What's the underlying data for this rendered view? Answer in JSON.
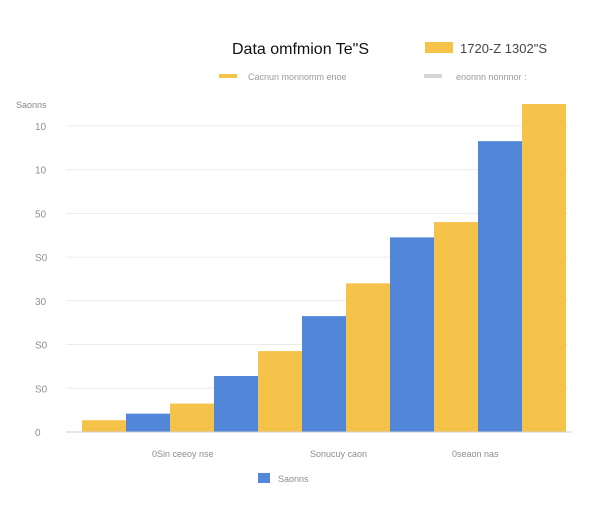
{
  "chart_data": {
    "type": "bar",
    "title": "Data omfmion Te\"S",
    "header_right_label": "1720-Z 1302\"S",
    "subtitle_left": "Cacnun monnomm enoe",
    "subtitle_right": "enonnn nonnnor :",
    "ylabel": "Saonns",
    "y_ticks": [
      "0",
      "S0",
      "S0",
      "30",
      "S0",
      "50",
      "10",
      "10"
    ],
    "y_tick_values": [
      0,
      10,
      20,
      30,
      40,
      50,
      60,
      70
    ],
    "ylim": [
      0,
      75
    ],
    "grid": true,
    "bar_groups": 6,
    "series": [
      {
        "name": "Saonns",
        "color": "#f5c24a",
        "values": [
          2.7,
          6.5,
          18.5,
          34,
          48,
          75
        ]
      },
      {
        "name": "Saonns",
        "color": "#5286d9",
        "values": [
          4.2,
          12.8,
          26.5,
          44.5,
          66.5,
          0
        ]
      }
    ],
    "bars_in_order": [
      {
        "series": 0,
        "value": 2.7
      },
      {
        "series": 1,
        "value": 4.2
      },
      {
        "series": 0,
        "value": 6.5
      },
      {
        "series": 1,
        "value": 12.8
      },
      {
        "series": 0,
        "value": 18.5
      },
      {
        "series": 1,
        "value": 26.5
      },
      {
        "series": 0,
        "value": 34
      },
      {
        "series": 1,
        "value": 44.5
      },
      {
        "series": 0,
        "value": 48
      },
      {
        "series": 1,
        "value": 66.5
      },
      {
        "series": 0,
        "value": 75
      }
    ],
    "x_group_labels": [
      "0Sin ceeoy nse",
      "Sonucuy caon",
      "0seaon nas"
    ],
    "legend_bottom": "Saonns",
    "legend_top": [
      {
        "label": "Cacnun monnomm enoe",
        "color": "#f5c24a"
      },
      {
        "label": "enonnn nonnnor :",
        "color": "#d6d6d6"
      }
    ]
  }
}
